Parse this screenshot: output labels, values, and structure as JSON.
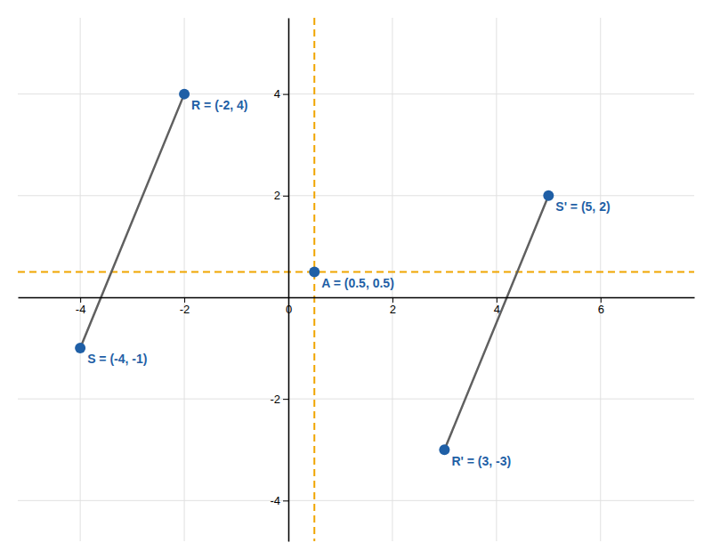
{
  "chart_data": {
    "type": "line",
    "xlim": [
      -5.2,
      7.8
    ],
    "ylim": [
      -4.8,
      5.5
    ],
    "xticks": [
      -4,
      -2,
      0,
      2,
      4,
      6
    ],
    "yticks": [
      -4,
      -2,
      2,
      4
    ],
    "grid": true,
    "data_labels": true,
    "series": [
      {
        "x": [
          -2,
          -4
        ],
        "values": [
          4,
          -1
        ],
        "color": "#606060"
      },
      {
        "x": [
          3,
          5
        ],
        "values": [
          -3,
          2
        ],
        "color": "#606060"
      },
      {
        "type": "scatter",
        "x": [
          -2,
          -4,
          3,
          5,
          0.5
        ],
        "values": [
          4,
          -1,
          -3,
          2,
          0.5
        ],
        "value_labels": [
          "R = (-2, 4)",
          "S = (-4, -1)",
          "R' = (3, -3)",
          "S' = (5, 2)",
          "A = (0.5, 0.5)"
        ],
        "color": "#1f5fa6"
      }
    ],
    "reference_lines": [
      {
        "axis": "x",
        "value": 0.5,
        "color": "#f0a500",
        "line_style": "dashed"
      },
      {
        "axis": "y",
        "value": 0.5,
        "color": "#f0a500",
        "line_style": "dashed"
      }
    ]
  }
}
